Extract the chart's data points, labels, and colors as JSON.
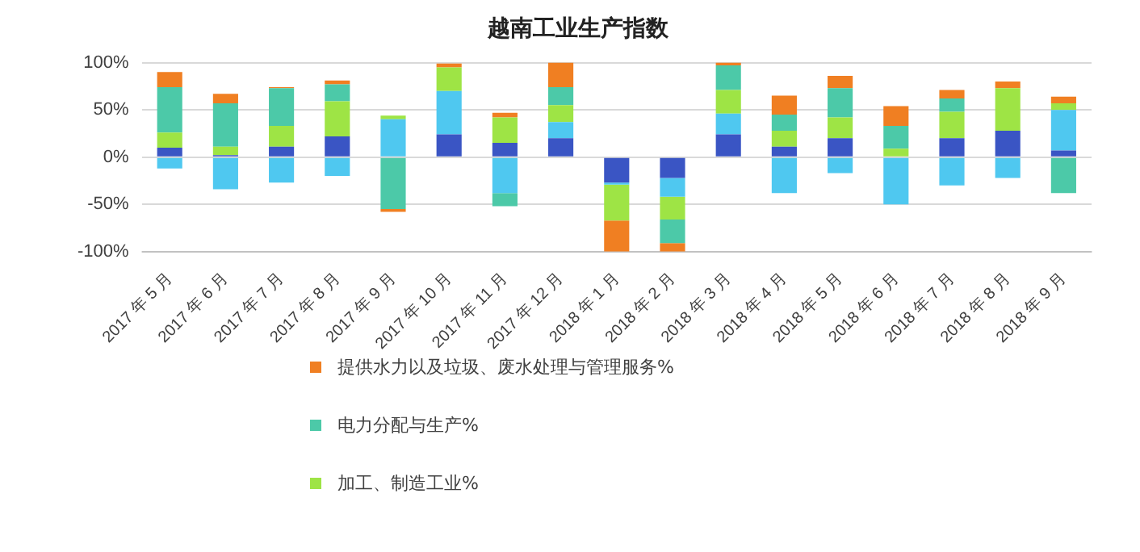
{
  "chart_data": {
    "type": "bar",
    "title": "越南工业生产指数",
    "stacked": true,
    "categories": [
      "2017 年 5 月",
      "2017 年 6 月",
      "2017 年 7 月",
      "2017 年 8 月",
      "2017 年 9 月",
      "2017 年 10 月",
      "2017 年 11 月",
      "2017 年 12 月",
      "2018 年 1 月",
      "2018 年 2 月",
      "2018 年 3 月",
      "2018 年 4 月",
      "2018 年 5 月",
      "2018 年 6 月",
      "2018 年 7 月",
      "2018 年 8 月",
      "2018 年 9 月"
    ],
    "series": [
      {
        "color": "#3a55c4",
        "values": [
          10,
          2,
          11,
          22,
          0,
          24,
          15,
          20,
          -27,
          -22,
          24,
          11,
          20,
          0,
          20,
          28,
          7
        ]
      },
      {
        "color": "#4fc8f0",
        "values": [
          -12,
          -34,
          -27,
          -20,
          40,
          46,
          -38,
          17,
          -2,
          -20,
          22,
          -38,
          -17,
          -50,
          -30,
          -22,
          43
        ]
      },
      {
        "name": "加工、制造工业%",
        "color": "#9ee445",
        "values": [
          16,
          9,
          22,
          37,
          4,
          25,
          27,
          18,
          -38,
          -24,
          25,
          17,
          22,
          9,
          28,
          45,
          7
        ]
      },
      {
        "name": "电力分配与生产%",
        "color": "#4cc9a8",
        "values": [
          48,
          46,
          40,
          18,
          -55,
          0,
          -14,
          19,
          0,
          -25,
          26,
          17,
          31,
          24,
          14,
          0,
          -38
        ]
      },
      {
        "name": "提供水力以及垃圾、废水处理与管理服务%",
        "color": "#f07f22",
        "values": [
          16,
          10,
          1,
          4,
          -3,
          4,
          5,
          26,
          -33,
          -9,
          3,
          20,
          13,
          21,
          9,
          7,
          7
        ]
      }
    ],
    "ylim": [
      -100,
      100
    ],
    "yticks": [
      {
        "value": -100,
        "label": "-100%"
      },
      {
        "value": -50,
        "label": "-50%"
      },
      {
        "value": 0,
        "label": "0%"
      },
      {
        "value": 50,
        "label": "50%"
      },
      {
        "value": 100,
        "label": "100%"
      }
    ],
    "grid": "y",
    "legend": "bottom"
  }
}
